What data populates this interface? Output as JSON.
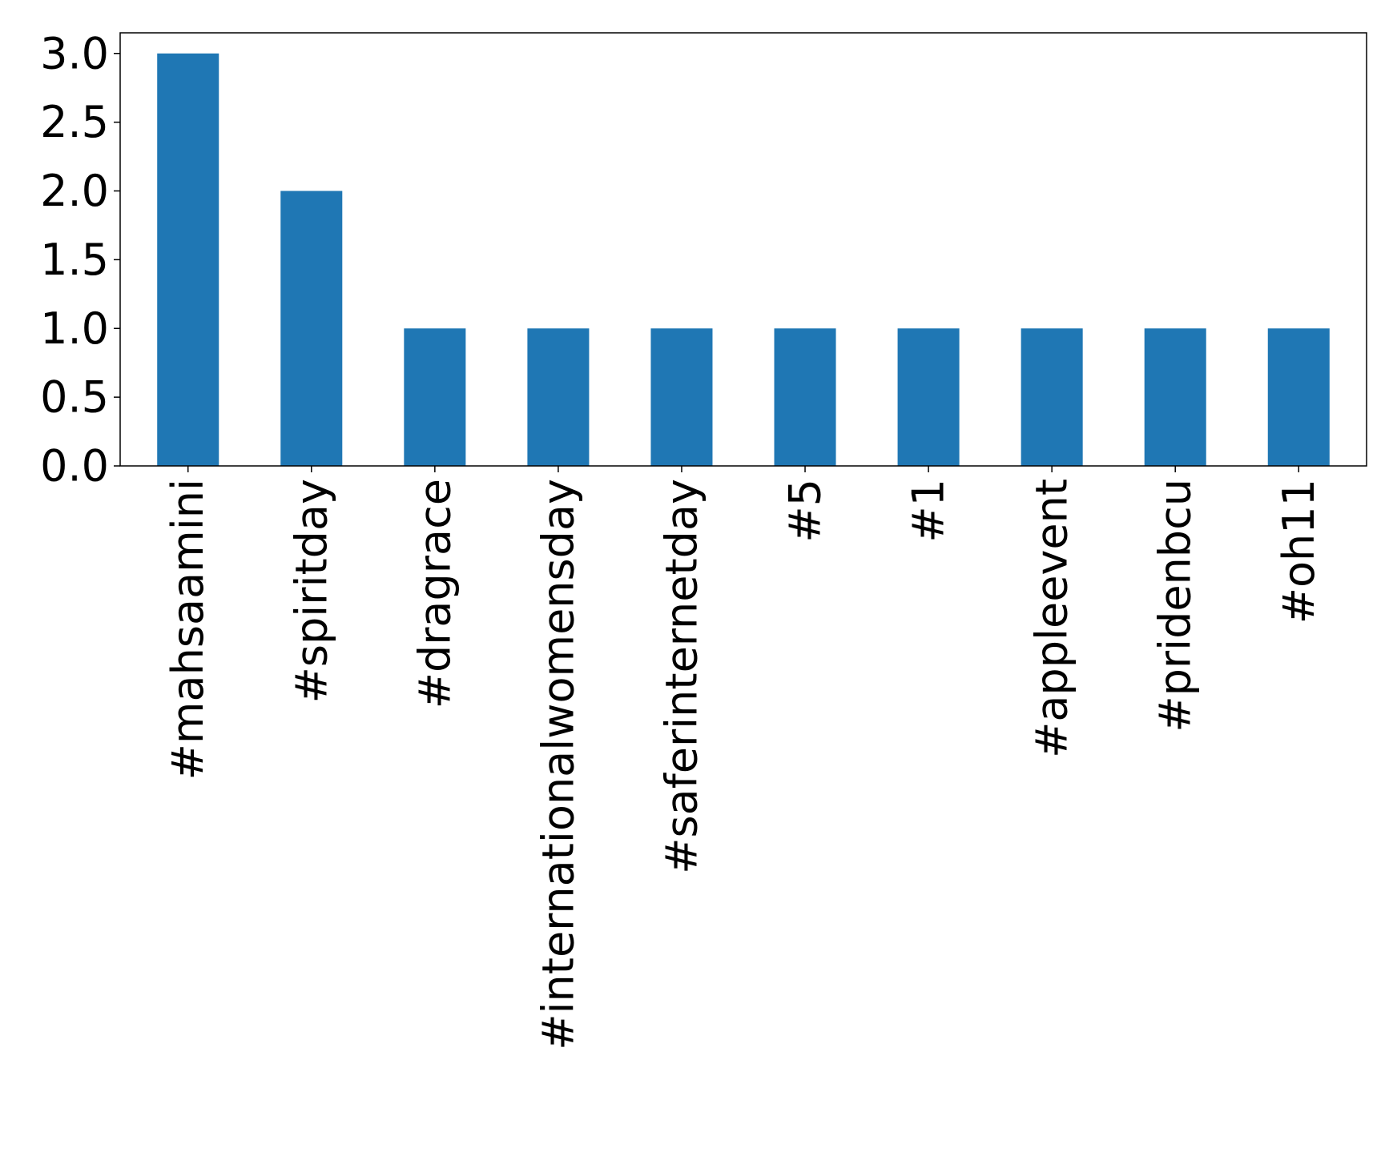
{
  "chart_data": {
    "type": "bar",
    "title": "",
    "xlabel": "",
    "ylabel": "",
    "categories": [
      "#mahsaamini",
      "#spiritday",
      "#dragrace",
      "#internationalwomensday",
      "#saferinternetday",
      "#5",
      "#1",
      "#appleevent",
      "#pridenbcu",
      "#oh11"
    ],
    "values": [
      3,
      2,
      1,
      1,
      1,
      1,
      1,
      1,
      1,
      1
    ],
    "ylim": [
      0,
      3.15
    ],
    "yticks": [
      0.0,
      0.5,
      1.0,
      1.5,
      2.0,
      2.5,
      3.0
    ],
    "ytick_labels": [
      "0.0",
      "0.5",
      "1.0",
      "1.5",
      "2.0",
      "2.5",
      "3.0"
    ],
    "bar_color": "#1f77b4",
    "grid": false,
    "legend": "none"
  }
}
